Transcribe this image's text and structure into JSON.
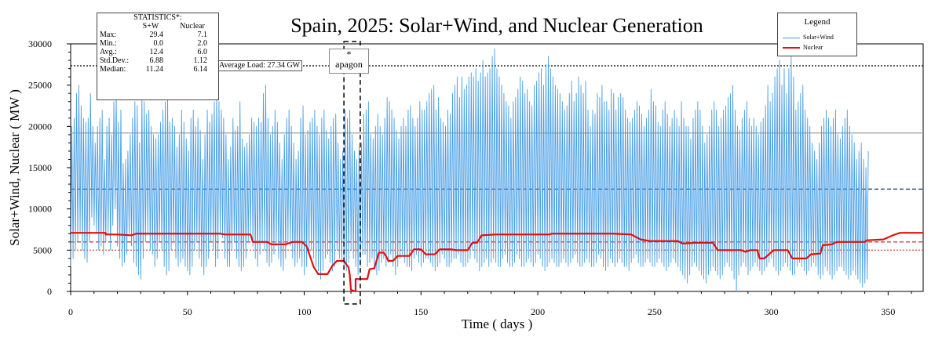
{
  "chart_data": {
    "type": "line",
    "title": "Spain, 2025: Solar+Wind, and Nuclear Generation",
    "xlabel": "Time ( days )",
    "ylabel": "Solar+Wind, Nuclear ( MW )",
    "xlim": [
      0,
      365
    ],
    "ylim": [
      0,
      30000
    ],
    "xticks": [
      0,
      50,
      100,
      150,
      200,
      250,
      300,
      350
    ],
    "yticks": [
      0,
      5000,
      10000,
      15000,
      20000,
      25000,
      30000
    ],
    "legend": {
      "title": "Legend",
      "position": "top-right"
    },
    "series": [
      {
        "name": "Solar+Wind",
        "color": "#4a9fe6",
        "daily_max": [
          20000,
          21000,
          24000,
          25000,
          22500,
          21000,
          20500,
          21000,
          24000,
          20000,
          18000,
          20000,
          21000,
          22000,
          16000,
          20000,
          21000,
          19000,
          23000,
          24000,
          20500,
          22000,
          15500,
          16000,
          17000,
          19000,
          21000,
          23000,
          22500,
          18000,
          24000,
          23000,
          21500,
          22000,
          20000,
          19000,
          18500,
          19000,
          20500,
          22000,
          23000,
          24000,
          20500,
          21000,
          20000,
          17500,
          19000,
          22000,
          20500,
          18500,
          17000,
          21000,
          22000,
          20000,
          21000,
          19500,
          16000,
          19000,
          22000,
          20500,
          21500,
          23000,
          24000,
          23000,
          22000,
          21000,
          19000,
          16000,
          17500,
          21000,
          19500,
          20000,
          23000,
          18500,
          17500,
          18000,
          19000,
          21000,
          20500,
          20000,
          21000,
          20500,
          24000,
          25000,
          21000,
          19000,
          20000,
          22000,
          20500,
          18000,
          16000,
          19000,
          21000,
          22000,
          20000,
          18000,
          16000,
          17000,
          21000,
          22500,
          19000,
          19500,
          20500,
          21000,
          22000,
          20000,
          19000,
          21000,
          22000,
          19500,
          18500,
          20000,
          21000,
          21500,
          18000,
          16000,
          17000,
          22000,
          21000,
          22000,
          19000,
          17000,
          16000,
          17500,
          18000,
          21500,
          22000,
          23000,
          19000,
          18500,
          20000,
          21500,
          20000,
          19000,
          21000,
          23500,
          23000,
          22000,
          21000,
          19500,
          18500,
          20000,
          21000,
          20000,
          22000,
          22500,
          21000,
          20000,
          21000,
          23000,
          22000,
          22000,
          23000,
          24000,
          24500,
          25000,
          22000,
          23500,
          21000,
          20500,
          20000,
          22000,
          21500,
          24000,
          25000,
          26000,
          23500,
          26000,
          24500,
          25000,
          26000,
          26500,
          26000,
          27000,
          25500,
          26500,
          28000,
          26000,
          26500,
          27000,
          28500,
          29400,
          27000,
          26000,
          25000,
          24000,
          23000,
          22500,
          21000,
          23000,
          23500,
          24500,
          26000,
          25500,
          24000,
          24500,
          23000,
          22500,
          25000,
          25500,
          26500,
          27000,
          25000,
          27500,
          28500,
          27000,
          26000,
          25000,
          24500,
          24000,
          23000,
          22000,
          22500,
          24000,
          25500,
          23000,
          24000,
          26000,
          25000,
          24000,
          25500,
          22000,
          20000,
          22000,
          21500,
          24000,
          23500,
          25000,
          23000,
          23000,
          22000,
          24500,
          24000,
          22000,
          23500,
          24000,
          23500,
          22000,
          21000,
          20500,
          21000,
          22000,
          23000,
          22500,
          21500,
          20000,
          21000,
          22000,
          24500,
          23000,
          22500,
          20500,
          20000,
          22000,
          23000,
          21500,
          20000,
          21000,
          22000,
          21000,
          20000,
          23000,
          21000,
          20000,
          20000,
          18500,
          21000,
          22000,
          23000,
          22000,
          20000,
          18000,
          19000,
          20000,
          22000,
          23000,
          22000,
          20000,
          21000,
          22000,
          22500,
          23500,
          24000,
          25000,
          22000,
          20000,
          19500,
          21000,
          22000,
          23000,
          21000,
          20000,
          21000,
          20000,
          19000,
          20500,
          21000,
          22500,
          25000,
          23000,
          24000,
          26000,
          27000,
          28000,
          25000,
          27000,
          24000,
          27000,
          28500,
          26000,
          22000,
          23000,
          24000,
          25000,
          22000,
          21000,
          20000,
          18000,
          17000,
          16000,
          18000,
          20000,
          21000,
          22000,
          21000,
          20000,
          21000,
          22000,
          19000,
          18500,
          20000,
          21000,
          22000,
          20000,
          19000,
          18000,
          16000,
          17000,
          18000,
          16000,
          15000,
          17000
        ],
        "daily_min": [
          3000,
          4000,
          5000,
          6000,
          7000,
          5000,
          4000,
          3500,
          6000,
          9000,
          8000,
          7000,
          5000,
          5500,
          4500,
          6000,
          7000,
          5000,
          8000,
          10000,
          5500,
          4000,
          3000,
          3500,
          4500,
          7000,
          5500,
          3500,
          3000,
          2000,
          1500,
          4000,
          6000,
          7000,
          5000,
          4500,
          3000,
          4000,
          6000,
          5000,
          3000,
          2000,
          2500,
          5000,
          6000,
          4000,
          3000,
          3500,
          4000,
          3000,
          2500,
          2000,
          3000,
          5000,
          6000,
          4000,
          3000,
          2000,
          3000,
          4000,
          6000,
          5000,
          3000,
          4000,
          7000,
          6500,
          4000,
          3000,
          3000,
          5000,
          6000,
          4000,
          3000,
          2500,
          3000,
          4000,
          6000,
          7000,
          5500,
          4000,
          3000,
          4500,
          6000,
          5000,
          3500,
          3000,
          3500,
          4500,
          5500,
          4000,
          3000,
          2500,
          4000,
          6000,
          5500,
          4000,
          3000,
          3500,
          4000,
          3000,
          2000,
          3000,
          4500,
          5000,
          4000,
          3000,
          2500,
          1500,
          2500,
          4000,
          4500,
          3500,
          2500,
          3000,
          5000,
          4000,
          3500,
          3000,
          2500,
          3500,
          5000,
          4000,
          3000,
          2000,
          3000,
          4500,
          4500,
          3000,
          3500,
          4000,
          3000,
          2000,
          2500,
          3500,
          4000,
          3000,
          3500,
          4500,
          3000,
          2000,
          3000,
          4000,
          4500,
          3500,
          3000,
          3000,
          2500,
          4000,
          4500,
          3500,
          3000,
          3500,
          4000,
          4000,
          3500,
          3000,
          2500,
          3000,
          3500,
          4500,
          4000,
          3000,
          3000,
          3500,
          4000,
          4000,
          4500,
          3500,
          3000,
          3000,
          3500,
          4000,
          5000,
          4000,
          3500,
          2500,
          3000,
          3500,
          4000,
          3000,
          3500,
          4000,
          3500,
          3000,
          3000,
          4000,
          4500,
          3500,
          3000,
          3000,
          3500,
          4500,
          4000,
          3000,
          3000,
          3500,
          4000,
          3500,
          3000,
          3500,
          4500,
          4000,
          3000,
          2500,
          3000,
          3500,
          4000,
          3500,
          3000,
          3000,
          3500,
          4000,
          3500,
          3000,
          3500,
          4000,
          4500,
          3500,
          3000,
          3000,
          3500,
          4000,
          3500,
          3000,
          3000,
          3500,
          4500,
          4000,
          3000,
          2500,
          3000,
          4000,
          3500,
          3000,
          3500,
          4000,
          3500,
          3000,
          3000,
          2500,
          3500,
          4000,
          4500,
          3500,
          3000,
          3000,
          3500,
          4000,
          3500,
          3000,
          3000,
          3500,
          4000,
          3500,
          3000,
          2500,
          3000,
          3500,
          4000,
          3500,
          3000,
          2500,
          2000,
          1500,
          1000,
          2000,
          3000,
          3500,
          3000,
          2500,
          2000,
          1500,
          1000,
          2000,
          2500,
          3000,
          2500,
          2000,
          1500,
          2000,
          3000,
          3500,
          3000,
          2500,
          1500,
          0,
          2000,
          3000,
          3500,
          3000,
          2000,
          2500,
          3000,
          3500,
          3000,
          2500,
          2000,
          2500,
          3000,
          3500,
          4000,
          3000,
          2500,
          2000,
          2500,
          3000,
          3500,
          3000,
          2500,
          2000,
          2000,
          3000,
          3500,
          3000,
          2500,
          2000,
          2500,
          3000,
          3500,
          3000,
          2000,
          1500,
          2000,
          3000,
          2500,
          2000,
          1500,
          2000,
          2500,
          3000,
          3000,
          2500,
          2000,
          1500,
          2000,
          2500,
          2000,
          1500,
          1000,
          500,
          1000,
          1500,
          2000
        ]
      },
      {
        "name": "Nuclear",
        "color": "#e01010",
        "points": [
          [
            0,
            7100
          ],
          [
            15,
            7100
          ],
          [
            15,
            6900
          ],
          [
            20,
            6900
          ],
          [
            26,
            6800
          ],
          [
            28,
            7000
          ],
          [
            64,
            7000
          ],
          [
            66,
            6900
          ],
          [
            77,
            6900
          ],
          [
            78,
            6000
          ],
          [
            84,
            6000
          ],
          [
            86,
            5700
          ],
          [
            92,
            5700
          ],
          [
            95,
            6000
          ],
          [
            99,
            6000
          ],
          [
            101,
            5500
          ],
          [
            104,
            3000
          ],
          [
            106,
            2100
          ],
          [
            110,
            2100
          ],
          [
            112,
            3100
          ],
          [
            114,
            3700
          ],
          [
            117,
            3700
          ],
          [
            119,
            2900
          ],
          [
            119.5,
            2000
          ],
          [
            120,
            200
          ],
          [
            122,
            0
          ],
          [
            122,
            1500
          ],
          [
            127,
            1500
          ],
          [
            128,
            2700
          ],
          [
            130,
            2800
          ],
          [
            132,
            4700
          ],
          [
            134,
            4700
          ],
          [
            135,
            4300
          ],
          [
            136,
            3700
          ],
          [
            138,
            3700
          ],
          [
            140,
            4300
          ],
          [
            145,
            4300
          ],
          [
            147,
            5100
          ],
          [
            150,
            5100
          ],
          [
            152,
            4500
          ],
          [
            156,
            4500
          ],
          [
            158,
            5100
          ],
          [
            163,
            5100
          ],
          [
            165,
            5000
          ],
          [
            170,
            5000
          ],
          [
            172,
            5900
          ],
          [
            174,
            5900
          ],
          [
            176,
            6800
          ],
          [
            182,
            6900
          ],
          [
            205,
            6900
          ],
          [
            206,
            7000
          ],
          [
            226,
            7000
          ],
          [
            232,
            7000
          ],
          [
            240,
            6900
          ],
          [
            244,
            6300
          ],
          [
            248,
            6100
          ],
          [
            260,
            6100
          ],
          [
            262,
            5800
          ],
          [
            268,
            5900
          ],
          [
            275,
            5900
          ],
          [
            277,
            5000
          ],
          [
            287,
            5000
          ],
          [
            289,
            4800
          ],
          [
            291,
            5000
          ],
          [
            294,
            5000
          ],
          [
            295,
            4000
          ],
          [
            297,
            4000
          ],
          [
            299,
            4500
          ],
          [
            301,
            5000
          ],
          [
            307,
            5000
          ],
          [
            309,
            4000
          ],
          [
            315,
            4000
          ],
          [
            317,
            4500
          ],
          [
            321,
            4600
          ],
          [
            322,
            5600
          ],
          [
            326,
            5700
          ],
          [
            328,
            6000
          ],
          [
            340,
            6000
          ],
          [
            341,
            6200
          ],
          [
            348,
            6300
          ],
          [
            352,
            6800
          ],
          [
            355,
            7100
          ],
          [
            365,
            7100
          ]
        ]
      }
    ],
    "reference_lines": [
      {
        "label": "Average Load: 27.34 GW",
        "value": 27340,
        "style": "dotted",
        "color": "#000000"
      },
      {
        "value": 19200,
        "style": "solid",
        "color": "#b0b0b0"
      },
      {
        "value": 12400,
        "style": "dashed",
        "color": "#1a2e66"
      },
      {
        "value": 6000,
        "style": "dashed",
        "color": "#d04040"
      },
      {
        "value": 5000,
        "style": "dotted",
        "color": "#d06040"
      }
    ],
    "annotation": {
      "marker": "*",
      "text": "apagon",
      "x_range": [
        117,
        124
      ]
    },
    "statistics": {
      "title": "STATISTICS*:",
      "columns": [
        "S+W",
        "Nuclear"
      ],
      "rows": [
        {
          "label": "Max:",
          "sw": "29.4",
          "nuc": "7.1"
        },
        {
          "label": "Min.:",
          "sw": "0.0",
          "nuc": "2.0"
        },
        {
          "label": "Avg.:",
          "sw": "12.4",
          "nuc": "6.0"
        },
        {
          "label": "Std.Dev.:",
          "sw": "6.88",
          "nuc": "1.12"
        },
        {
          "label": "Median:",
          "sw": "11.24",
          "nuc": "6.14"
        }
      ]
    }
  }
}
